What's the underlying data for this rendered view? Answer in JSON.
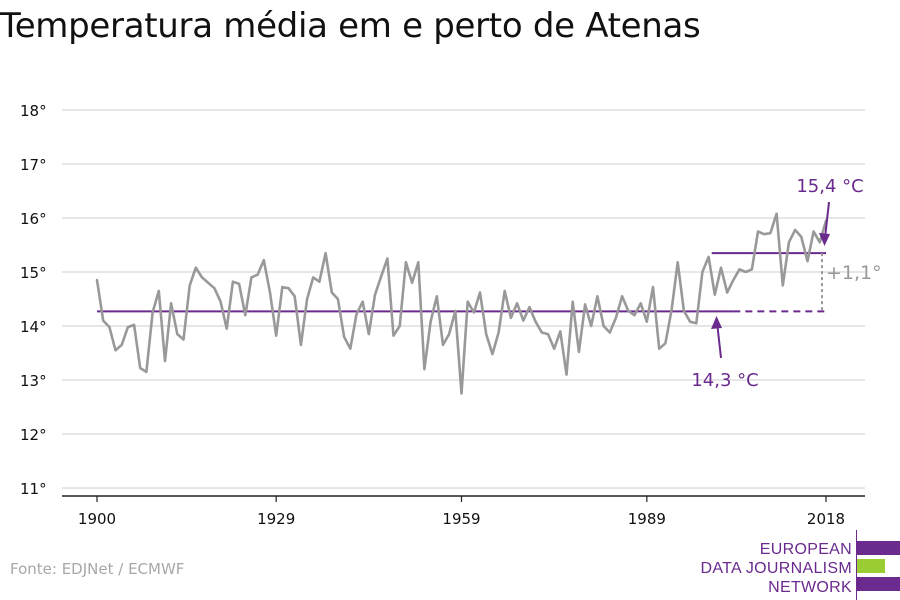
{
  "title": "Temperatura média em e perto de Atenas",
  "source": "Fonte: EDJNet / ECMWF",
  "logo": {
    "lines": [
      "EUROPEAN",
      "DATA JOURNALISM",
      "NETWORK"
    ]
  },
  "colors": {
    "series": "#999999",
    "baseline": "#6a2a8e",
    "recent": "#6a2a8e",
    "diff": "#999999",
    "grid": "#dddddd",
    "logo_purple": "#6a2a8e",
    "logo_green": "#9acd32"
  },
  "chart_data": {
    "type": "line",
    "title": "Temperatura média em e perto de Atenas",
    "xlabel": "",
    "ylabel": "",
    "xlim": [
      1900,
      2018
    ],
    "ylim": [
      11,
      18
    ],
    "yticks": [
      11,
      12,
      13,
      14,
      15,
      16,
      17,
      18
    ],
    "ytick_labels": [
      "11°",
      "12°",
      "13°",
      "14°",
      "15°",
      "16°",
      "17°",
      "18°"
    ],
    "xticks": [
      1900,
      1929,
      1959,
      1989,
      2018
    ],
    "xtick_labels": [
      "1900",
      "1929",
      "1959",
      "1989",
      "2018"
    ],
    "grid": true,
    "series": [
      {
        "x": [
          1900,
          1901,
          1902,
          1903,
          1904,
          1905,
          1906,
          1907,
          1908,
          1909,
          1910,
          1911,
          1912,
          1913,
          1914,
          1915,
          1916,
          1917,
          1918,
          1919,
          1920,
          1921,
          1922,
          1923,
          1924,
          1925,
          1926,
          1927,
          1928,
          1929,
          1930,
          1931,
          1932,
          1933,
          1934,
          1935,
          1936,
          1937,
          1938,
          1939,
          1940,
          1941,
          1942,
          1943,
          1944,
          1945,
          1946,
          1947,
          1948,
          1949,
          1950,
          1951,
          1952,
          1953,
          1954,
          1955,
          1956,
          1957,
          1958,
          1959,
          1960,
          1961,
          1962,
          1963,
          1964,
          1965,
          1966,
          1967,
          1968,
          1969,
          1970,
          1971,
          1972,
          1973,
          1974,
          1975,
          1976,
          1977,
          1978,
          1979,
          1980,
          1981,
          1982,
          1983,
          1984,
          1985,
          1986,
          1987,
          1988,
          1989,
          1990,
          1991,
          1992,
          1993,
          1994,
          1995,
          1996,
          1997,
          1998,
          1999,
          2000,
          2001,
          2002,
          2003,
          2004,
          2005,
          2006,
          2007,
          2008,
          2009,
          2010,
          2011,
          2012,
          2013,
          2014,
          2015,
          2016,
          2017,
          2018
        ],
        "values": [
          14.85,
          14.1,
          13.98,
          13.55,
          13.65,
          13.98,
          14.02,
          13.22,
          13.15,
          14.25,
          14.65,
          13.35,
          14.42,
          13.85,
          13.75,
          14.75,
          15.08,
          14.9,
          14.8,
          14.7,
          14.45,
          13.95,
          14.82,
          14.78,
          14.2,
          14.9,
          14.95,
          15.22,
          14.62,
          13.82,
          14.72,
          14.7,
          14.55,
          13.65,
          14.5,
          14.9,
          14.82,
          15.35,
          14.62,
          14.5,
          13.8,
          13.58,
          14.22,
          14.45,
          13.85,
          14.58,
          14.92,
          15.25,
          13.82,
          14.0,
          15.18,
          14.8,
          15.18,
          13.2,
          14.08,
          14.55,
          13.65,
          13.85,
          14.28,
          12.75,
          14.45,
          14.25,
          14.62,
          13.85,
          13.48,
          13.88,
          14.65,
          14.15,
          14.42,
          14.1,
          14.35,
          14.08,
          13.88,
          13.85,
          13.58,
          13.9,
          13.1,
          14.45,
          13.52,
          14.4,
          14.0,
          14.55,
          14.0,
          13.88,
          14.15,
          14.55,
          14.28,
          14.2,
          14.42,
          14.08,
          14.72,
          13.58,
          13.68,
          14.3,
          15.18,
          14.28,
          14.08,
          14.05,
          15.0,
          15.28,
          14.58,
          15.08,
          14.62,
          14.85,
          15.05,
          15.0,
          15.05,
          15.75,
          15.7,
          15.72,
          16.08,
          14.75,
          15.55,
          15.78,
          15.65,
          15.2,
          15.75,
          15.55,
          15.95
        ]
      }
    ],
    "reference_lines": [
      {
        "label": "14,3 °C",
        "value": 14.27,
        "x_from": 1900,
        "x_to": 2018
      },
      {
        "label": "15,4 °C",
        "value": 15.35,
        "x_from": 2008,
        "x_to": 2018
      }
    ],
    "annotations": {
      "baseline_label": "14,3 °C",
      "recent_label": "15,4 °C",
      "difference_label": "+1,1°"
    }
  }
}
